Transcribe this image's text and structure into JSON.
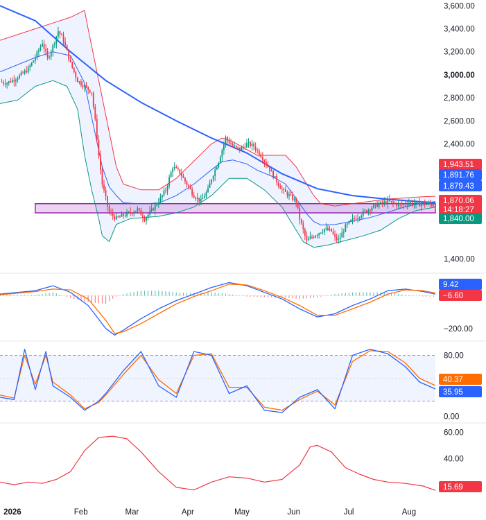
{
  "chart_data": [
    {
      "type": "candlestick",
      "panel": "price",
      "y_axis": {
        "ticks": [
          3600,
          3400,
          3200,
          3000,
          2800,
          2600,
          2400,
          1400
        ],
        "tick_labels": [
          "3,600.00",
          "3,400.00",
          "3,200.00",
          "3,000.00",
          "2,800.00",
          "2,600.00",
          "2,400.00",
          "1,400.00"
        ],
        "bold_tick": "3,000.00",
        "ylim": [
          1300,
          3650
        ]
      },
      "x_axis": {
        "months": [
          "2026",
          "Feb",
          "Mar",
          "Apr",
          "May",
          "Jun",
          "Jul",
          "Aug"
        ]
      },
      "price_path": [
        [
          0,
          2940
        ],
        [
          4,
          2930
        ],
        [
          8,
          2960
        ],
        [
          12,
          3000
        ],
        [
          16,
          3050
        ],
        [
          20,
          3150
        ],
        [
          24,
          3280
        ],
        [
          27,
          3140
        ],
        [
          30,
          3250
        ],
        [
          33,
          3380
        ],
        [
          36,
          3300
        ],
        [
          40,
          3100
        ],
        [
          44,
          2950
        ],
        [
          48,
          2900
        ],
        [
          52,
          2850
        ],
        [
          54,
          2600
        ],
        [
          56,
          2300
        ],
        [
          58,
          2050
        ],
        [
          62,
          1800
        ],
        [
          66,
          1750
        ],
        [
          70,
          1780
        ],
        [
          74,
          1800
        ],
        [
          78,
          1830
        ],
        [
          82,
          1750
        ],
        [
          86,
          1820
        ],
        [
          90,
          1900
        ],
        [
          94,
          2000
        ],
        [
          98,
          2200
        ],
        [
          102,
          2150
        ],
        [
          106,
          2050
        ],
        [
          110,
          1950
        ],
        [
          114,
          1900
        ],
        [
          118,
          2000
        ],
        [
          120,
          2100
        ],
        [
          124,
          2250
        ],
        [
          126,
          2350
        ],
        [
          128,
          2450
        ],
        [
          132,
          2380
        ],
        [
          136,
          2350
        ],
        [
          140,
          2400
        ],
        [
          144,
          2380
        ],
        [
          148,
          2300
        ],
        [
          152,
          2200
        ],
        [
          156,
          2100
        ],
        [
          160,
          2000
        ],
        [
          164,
          1950
        ],
        [
          168,
          1900
        ],
        [
          170,
          1750
        ],
        [
          172,
          1650
        ],
        [
          174,
          1550
        ],
        [
          176,
          1580
        ],
        [
          180,
          1620
        ],
        [
          184,
          1660
        ],
        [
          188,
          1640
        ],
        [
          190,
          1580
        ],
        [
          192,
          1560
        ],
        [
          194,
          1620
        ],
        [
          196,
          1680
        ],
        [
          200,
          1740
        ],
        [
          204,
          1780
        ],
        [
          208,
          1820
        ],
        [
          212,
          1860
        ],
        [
          216,
          1880
        ],
        [
          220,
          1900
        ],
        [
          224,
          1880
        ],
        [
          228,
          1870
        ],
        [
          232,
          1890
        ],
        [
          236,
          1875
        ],
        [
          240,
          1878
        ],
        [
          244,
          1872
        ],
        [
          247,
          1870.06
        ]
      ],
      "moving_average_path": [
        [
          0,
          3600
        ],
        [
          20,
          3470
        ],
        [
          40,
          3200
        ],
        [
          60,
          2950
        ],
        [
          80,
          2760
        ],
        [
          100,
          2600
        ],
        [
          120,
          2450
        ],
        [
          140,
          2320
        ],
        [
          160,
          2140
        ],
        [
          180,
          2010
        ],
        [
          200,
          1950
        ],
        [
          220,
          1918
        ],
        [
          240,
          1895
        ],
        [
          247,
          1890
        ]
      ],
      "bollinger_upper_path": [
        [
          0,
          3300
        ],
        [
          20,
          3400
        ],
        [
          30,
          3450
        ],
        [
          40,
          3500
        ],
        [
          48,
          3560
        ],
        [
          50,
          3400
        ],
        [
          54,
          3100
        ],
        [
          58,
          2800
        ],
        [
          62,
          2500
        ],
        [
          66,
          2200
        ],
        [
          70,
          2050
        ],
        [
          80,
          2000
        ],
        [
          90,
          2000
        ],
        [
          100,
          2100
        ],
        [
          110,
          2250
        ],
        [
          120,
          2400
        ],
        [
          126,
          2450
        ],
        [
          132,
          2420
        ],
        [
          140,
          2350
        ],
        [
          146,
          2300
        ],
        [
          154,
          2300
        ],
        [
          162,
          2300
        ],
        [
          168,
          2200
        ],
        [
          174,
          2050
        ],
        [
          178,
          1950
        ],
        [
          182,
          1880
        ],
        [
          190,
          1860
        ],
        [
          200,
          1880
        ],
        [
          210,
          1900
        ],
        [
          220,
          1920
        ],
        [
          230,
          1930
        ],
        [
          240,
          1940
        ],
        [
          247,
          1945
        ]
      ],
      "bollinger_lower_path": [
        [
          0,
          2750
        ],
        [
          10,
          2780
        ],
        [
          20,
          2900
        ],
        [
          30,
          2950
        ],
        [
          38,
          2900
        ],
        [
          44,
          2700
        ],
        [
          48,
          2300
        ],
        [
          52,
          2000
        ],
        [
          56,
          1750
        ],
        [
          58,
          1600
        ],
        [
          62,
          1550
        ],
        [
          66,
          1700
        ],
        [
          74,
          1750
        ],
        [
          82,
          1760
        ],
        [
          90,
          1770
        ],
        [
          100,
          1800
        ],
        [
          110,
          1850
        ],
        [
          120,
          1950
        ],
        [
          130,
          2100
        ],
        [
          140,
          2100
        ],
        [
          150,
          2000
        ],
        [
          160,
          1850
        ],
        [
          168,
          1650
        ],
        [
          172,
          1550
        ],
        [
          178,
          1500
        ],
        [
          186,
          1520
        ],
        [
          196,
          1560
        ],
        [
          206,
          1600
        ],
        [
          216,
          1650
        ],
        [
          226,
          1750
        ],
        [
          236,
          1820
        ],
        [
          247,
          1850
        ]
      ],
      "support_zone": {
        "top": 1880,
        "bottom": 1800,
        "start_x": 20,
        "end_x": 247
      },
      "price_tags": [
        {
          "label": "1,943.51",
          "color": "#f23645",
          "value": 1943.51
        },
        {
          "label": "1,891.76",
          "color": "#2962ff",
          "value": 1891.76
        },
        {
          "label": "1,879.43",
          "color": "#2962ff",
          "value": 1879.43
        },
        {
          "label": "1,870.06",
          "color": "#f23645",
          "value": 1870.06,
          "sub": "14:18:27"
        },
        {
          "label": "1,840.00",
          "color": "#089981",
          "value": 1840.0
        }
      ]
    },
    {
      "type": "macd",
      "panel": "macd",
      "y_axis": {
        "ticks": [
          -200
        ],
        "tick_labels": [
          "−200.00"
        ],
        "ylim": [
          -260,
          120
        ]
      },
      "macd_line": [
        [
          0,
          10
        ],
        [
          20,
          30
        ],
        [
          30,
          60
        ],
        [
          40,
          20
        ],
        [
          50,
          -60
        ],
        [
          60,
          -200
        ],
        [
          65,
          -240
        ],
        [
          70,
          -210
        ],
        [
          80,
          -140
        ],
        [
          90,
          -80
        ],
        [
          100,
          -30
        ],
        [
          110,
          10
        ],
        [
          120,
          50
        ],
        [
          130,
          80
        ],
        [
          140,
          60
        ],
        [
          150,
          20
        ],
        [
          160,
          -20
        ],
        [
          170,
          -80
        ],
        [
          180,
          -130
        ],
        [
          190,
          -110
        ],
        [
          200,
          -60
        ],
        [
          210,
          -20
        ],
        [
          220,
          30
        ],
        [
          230,
          40
        ],
        [
          240,
          25
        ],
        [
          247,
          9.42
        ]
      ],
      "signal_line": [
        [
          0,
          5
        ],
        [
          20,
          25
        ],
        [
          30,
          40
        ],
        [
          40,
          35
        ],
        [
          50,
          -20
        ],
        [
          60,
          -150
        ],
        [
          65,
          -230
        ],
        [
          70,
          -220
        ],
        [
          80,
          -170
        ],
        [
          90,
          -110
        ],
        [
          100,
          -50
        ],
        [
          110,
          -5
        ],
        [
          120,
          30
        ],
        [
          130,
          70
        ],
        [
          140,
          65
        ],
        [
          150,
          30
        ],
        [
          160,
          -10
        ],
        [
          170,
          -60
        ],
        [
          180,
          -120
        ],
        [
          190,
          -120
        ],
        [
          200,
          -80
        ],
        [
          210,
          -40
        ],
        [
          220,
          10
        ],
        [
          230,
          35
        ],
        [
          240,
          30
        ],
        [
          247,
          16
        ]
      ],
      "tags": [
        {
          "label": "9.42",
          "color": "#2962ff",
          "value": 9.42
        },
        {
          "label": "−6.60",
          "color": "#f23645",
          "value": -6.6
        }
      ]
    },
    {
      "type": "stochastic",
      "panel": "stoch",
      "y_axis": {
        "ticks": [
          80,
          0
        ],
        "tick_labels": [
          "80.00",
          "0.00"
        ],
        "ylim": [
          -5,
          95
        ]
      },
      "bands": [
        80,
        20
      ],
      "k_line": [
        [
          0,
          25
        ],
        [
          8,
          22
        ],
        [
          14,
          88
        ],
        [
          20,
          35
        ],
        [
          26,
          85
        ],
        [
          30,
          40
        ],
        [
          40,
          25
        ],
        [
          48,
          8
        ],
        [
          56,
          20
        ],
        [
          60,
          30
        ],
        [
          70,
          60
        ],
        [
          80,
          85
        ],
        [
          90,
          40
        ],
        [
          100,
          25
        ],
        [
          110,
          85
        ],
        [
          120,
          80
        ],
        [
          130,
          30
        ],
        [
          140,
          40
        ],
        [
          150,
          8
        ],
        [
          160,
          5
        ],
        [
          170,
          25
        ],
        [
          180,
          35
        ],
        [
          190,
          10
        ],
        [
          200,
          80
        ],
        [
          210,
          88
        ],
        [
          220,
          82
        ],
        [
          230,
          65
        ],
        [
          238,
          45
        ],
        [
          247,
          35.95
        ]
      ],
      "d_line": [
        [
          0,
          28
        ],
        [
          8,
          24
        ],
        [
          14,
          80
        ],
        [
          20,
          42
        ],
        [
          26,
          80
        ],
        [
          30,
          45
        ],
        [
          40,
          28
        ],
        [
          48,
          10
        ],
        [
          56,
          18
        ],
        [
          60,
          28
        ],
        [
          70,
          55
        ],
        [
          80,
          80
        ],
        [
          90,
          48
        ],
        [
          100,
          30
        ],
        [
          110,
          80
        ],
        [
          120,
          82
        ],
        [
          130,
          38
        ],
        [
          140,
          38
        ],
        [
          150,
          12
        ],
        [
          160,
          8
        ],
        [
          170,
          22
        ],
        [
          180,
          33
        ],
        [
          190,
          15
        ],
        [
          200,
          72
        ],
        [
          210,
          86
        ],
        [
          220,
          85
        ],
        [
          230,
          70
        ],
        [
          238,
          50
        ],
        [
          247,
          40.37
        ]
      ],
      "tags": [
        {
          "label": "40.37",
          "color": "#ff6d00",
          "value": 40.37
        },
        {
          "label": "35.95",
          "color": "#2962ff",
          "value": 35.95
        }
      ]
    },
    {
      "type": "line",
      "panel": "adx",
      "y_axis": {
        "ticks": [
          60,
          40,
          20
        ],
        "tick_labels": [
          "60.00",
          "40.00",
          "20.00"
        ],
        "ylim": [
          10,
          65
        ]
      },
      "series": [
        {
          "name": "",
          "color": "#f23645",
          "path": [
            [
              0,
              22
            ],
            [
              8,
              20
            ],
            [
              16,
              22
            ],
            [
              24,
              21
            ],
            [
              32,
              24
            ],
            [
              40,
              30
            ],
            [
              48,
              46
            ],
            [
              56,
              56
            ],
            [
              64,
              57
            ],
            [
              72,
              55
            ],
            [
              80,
              45
            ],
            [
              90,
              30
            ],
            [
              100,
              18
            ],
            [
              110,
              16
            ],
            [
              120,
              22
            ],
            [
              130,
              26
            ],
            [
              140,
              25
            ],
            [
              150,
              22
            ],
            [
              160,
              24
            ],
            [
              170,
              35
            ],
            [
              176,
              49
            ],
            [
              180,
              50
            ],
            [
              188,
              45
            ],
            [
              196,
              33
            ],
            [
              204,
              28
            ],
            [
              212,
              24
            ],
            [
              220,
              22
            ],
            [
              230,
              21
            ],
            [
              240,
              19
            ],
            [
              247,
              15.69
            ]
          ]
        }
      ],
      "tags": [
        {
          "label": "15.69",
          "color": "#f23645",
          "value": 15.69
        }
      ]
    }
  ]
}
